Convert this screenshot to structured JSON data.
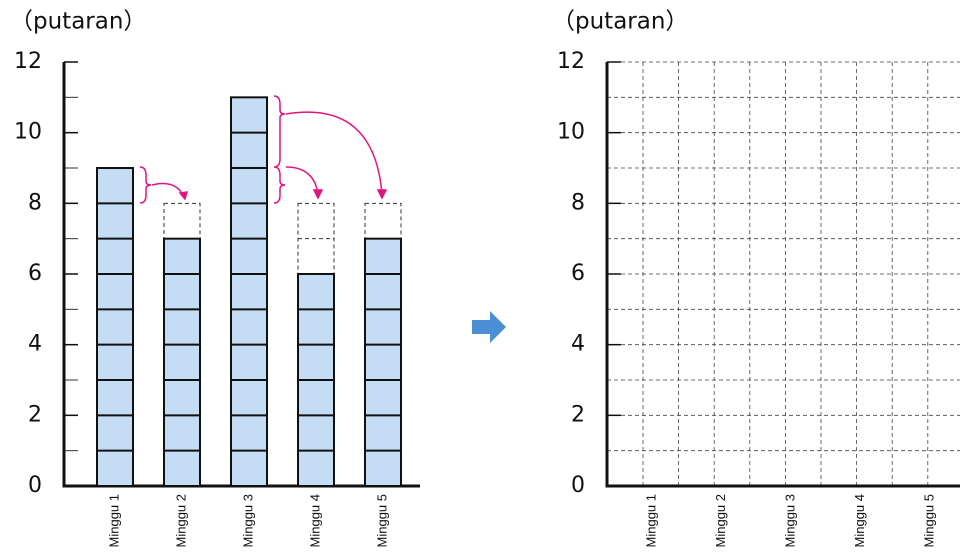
{
  "chart_data": [
    {
      "type": "bar",
      "y_label": "（putaran）",
      "categories": [
        "Minggu 1",
        "Minggu 2",
        "Minggu 3",
        "Minggu 4",
        "Minggu 5"
      ],
      "values": [
        9,
        7,
        11,
        6,
        7
      ],
      "mean": 8,
      "color": "#c5dcf5",
      "ylim": [
        0,
        12
      ],
      "yticks": [
        0,
        2,
        4,
        6,
        8,
        10,
        12
      ]
    },
    {
      "type": "empty_grid",
      "y_label": "（putaran）",
      "categories": [
        "Minggu 1",
        "Minggu 2",
        "Minggu 3",
        "Minggu 4",
        "Minggu 5"
      ],
      "ylim": [
        0,
        12
      ],
      "yticks": [
        0,
        2,
        4,
        6,
        8,
        10,
        12
      ],
      "grid": true
    }
  ]
}
